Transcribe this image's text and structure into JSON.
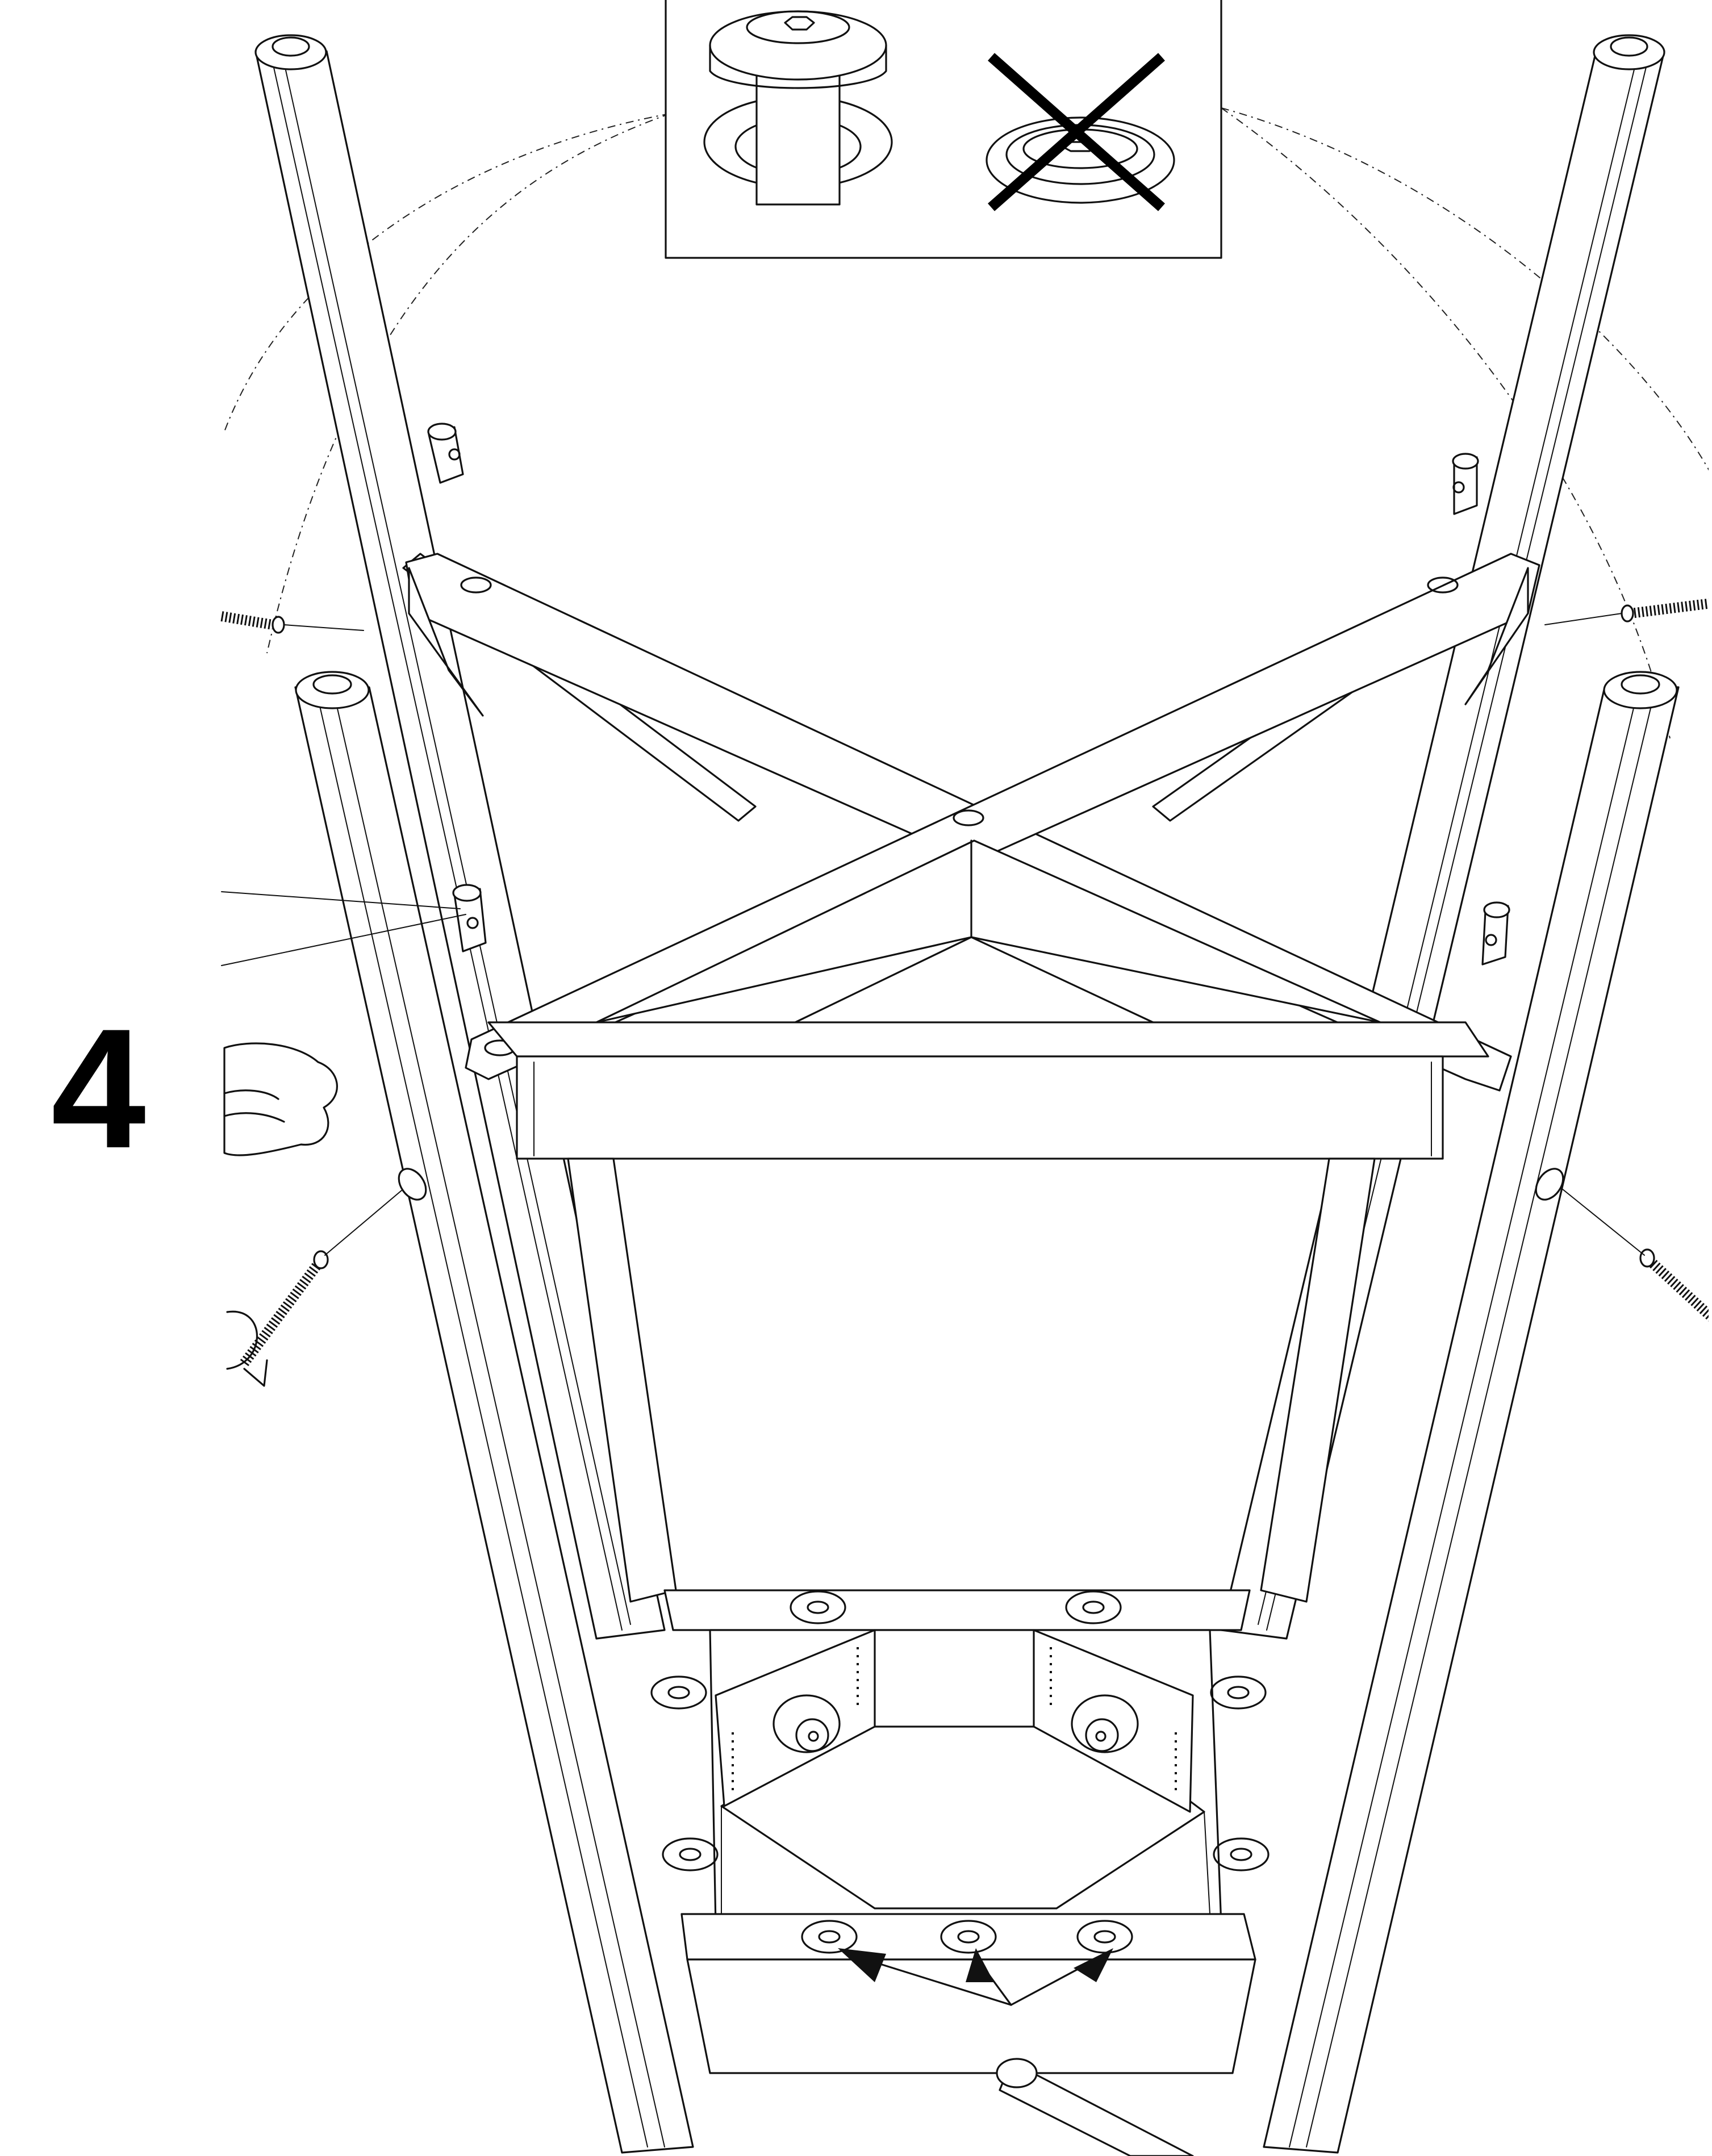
{
  "step": {
    "number": "4"
  },
  "detail_box": {
    "correct_icon": "hex-bolt-flush-icon",
    "incorrect_icon": "hex-bolt-recessed-cross-icon"
  },
  "icons": {
    "hand": "hand-icon",
    "rotation": "clockwise-rotation-icon",
    "bolt": "threaded-bolt-icon",
    "barrel_nut": "barrel-nut-icon"
  },
  "colors": {
    "line": "#111111",
    "background": "#ffffff"
  }
}
